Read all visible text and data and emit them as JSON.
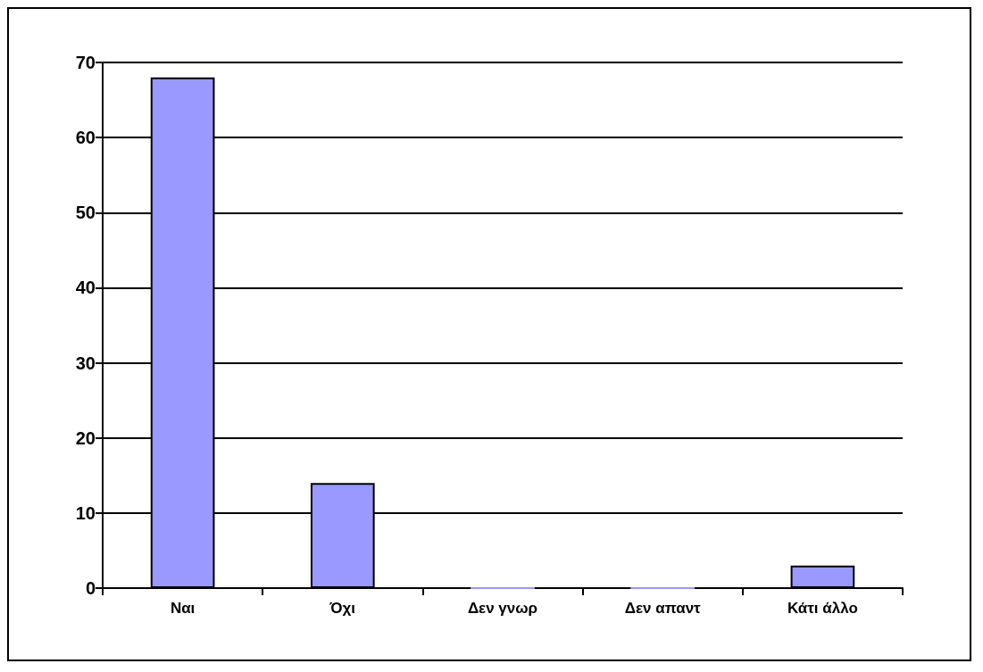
{
  "chart_data": {
    "type": "bar",
    "categories": [
      "Ναι",
      "Όχι",
      "Δεν γνωρ",
      "Δεν απαντ",
      "Κάτι άλλο"
    ],
    "values": [
      68,
      14,
      0,
      0,
      3
    ],
    "color": "#9999ff",
    "ylim": [
      0,
      70
    ],
    "yticks": [
      0,
      10,
      20,
      30,
      40,
      50,
      60,
      70
    ],
    "grid": "y"
  }
}
